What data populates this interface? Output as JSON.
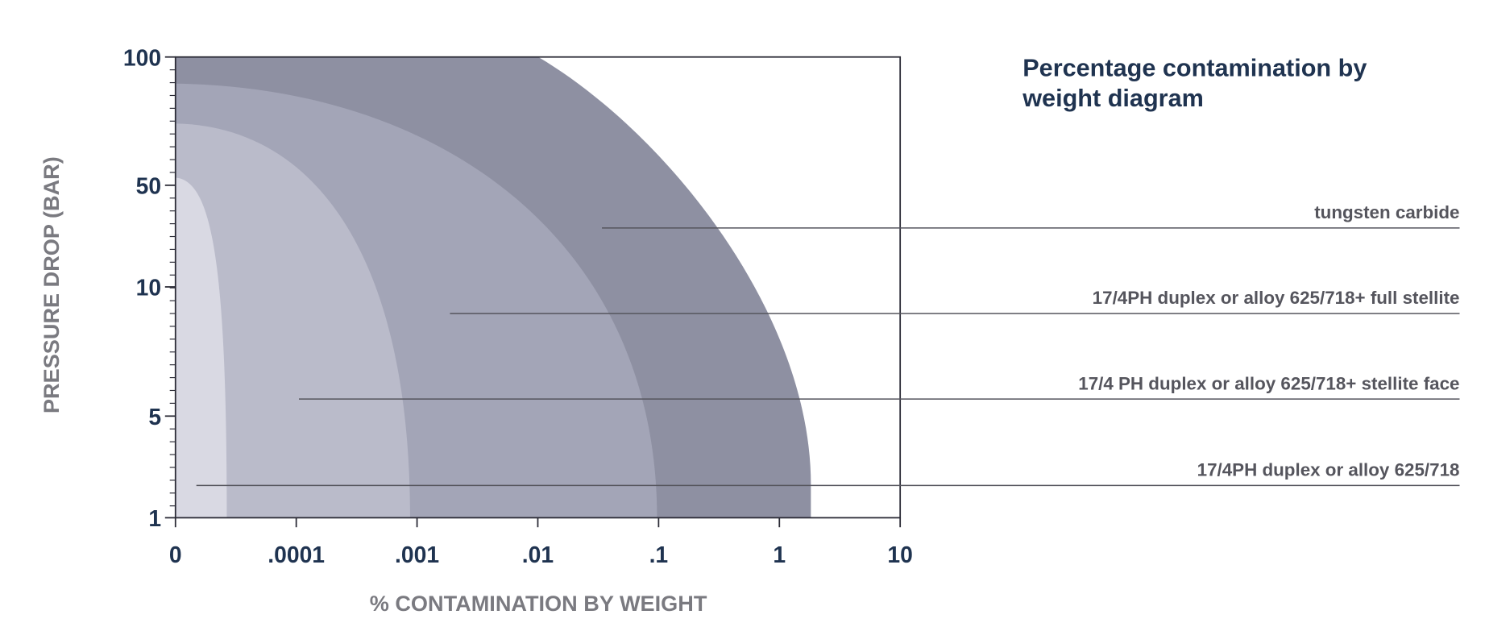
{
  "title_lines": [
    "Percentage contamination by",
    "weight diagram"
  ],
  "y_axis": {
    "title": "PRESSURE DROP (BAR)",
    "ticks": [
      "100",
      "50",
      "10",
      "5",
      "1"
    ]
  },
  "x_axis": {
    "title": "% CONTAMINATION BY WEIGHT",
    "ticks": [
      "0",
      ".0001",
      ".001",
      ".01",
      ".1",
      "1",
      "10"
    ]
  },
  "regions": [
    {
      "label": "tungsten carbide"
    },
    {
      "label": "17/4PH duplex or alloy 625/718+ full stellite"
    },
    {
      "label": "17/4 PH duplex or alloy 625/718+ stellite face"
    },
    {
      "label": "17/4PH duplex or alloy 625/718"
    }
  ]
}
